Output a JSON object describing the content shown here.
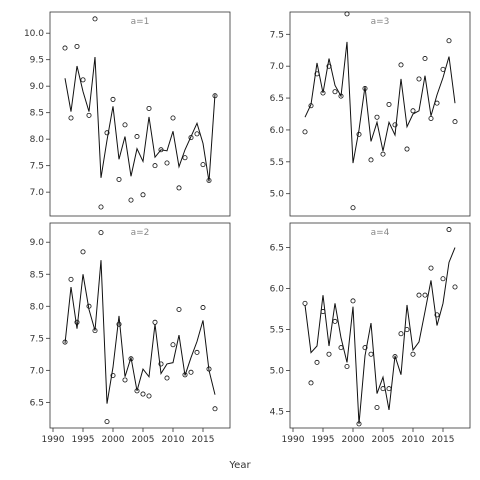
{
  "chart_data": {
    "type": "scatter",
    "xlabel": "Year",
    "panels": [
      {
        "title": "a=1",
        "xlim": [
          1989.5,
          2019.5
        ],
        "ylim": [
          6.55,
          10.4
        ],
        "yticks": [
          7.0,
          7.5,
          8.0,
          8.5,
          9.0,
          9.5,
          10.0
        ],
        "ytick_labels": [
          "7.0",
          "7.5",
          "8.0",
          "8.5",
          "9.0",
          "9.5",
          "10.0"
        ],
        "xticks": [],
        "xtick_labels": [],
        "x": [
          1992,
          1993,
          1994,
          1995,
          1996,
          1997,
          1998,
          1999,
          2000,
          2001,
          2002,
          2003,
          2004,
          2005,
          2006,
          2007,
          2008,
          2009,
          2010,
          2011,
          2012,
          2013,
          2014,
          2015,
          2016,
          2017
        ],
        "observed": [
          9.72,
          8.4,
          9.75,
          9.12,
          8.45,
          10.27,
          6.72,
          8.12,
          8.75,
          7.24,
          8.27,
          6.85,
          8.05,
          6.95,
          8.58,
          7.5,
          7.8,
          7.55,
          8.4,
          7.08,
          7.65,
          8.03,
          8.1,
          7.52,
          7.22,
          8.82
        ],
        "fitted": [
          9.15,
          8.52,
          9.38,
          8.9,
          8.52,
          9.55,
          7.27,
          7.98,
          8.62,
          7.62,
          8.05,
          7.3,
          7.82,
          7.58,
          8.42,
          7.66,
          7.8,
          7.78,
          8.15,
          7.48,
          7.8,
          8.05,
          8.3,
          7.92,
          7.2,
          8.85
        ]
      },
      {
        "title": "a=3",
        "xlim": [
          1989.5,
          2019.5
        ],
        "ylim": [
          4.65,
          7.85
        ],
        "yticks": [
          5.0,
          5.5,
          6.0,
          6.5,
          7.0,
          7.5
        ],
        "ytick_labels": [
          "5.0",
          "5.5",
          "6.0",
          "6.5",
          "7.0",
          "7.5"
        ],
        "xticks": [],
        "xtick_labels": [],
        "x": [
          1992,
          1993,
          1994,
          1995,
          1996,
          1997,
          1998,
          1999,
          2000,
          2001,
          2002,
          2003,
          2004,
          2005,
          2006,
          2007,
          2008,
          2009,
          2010,
          2011,
          2012,
          2013,
          2014,
          2015,
          2016,
          2017
        ],
        "observed": [
          5.97,
          6.38,
          6.88,
          6.58,
          7.0,
          6.6,
          6.53,
          7.82,
          4.78,
          5.93,
          6.65,
          5.53,
          6.2,
          5.62,
          6.4,
          6.08,
          7.02,
          5.7,
          6.3,
          6.8,
          7.12,
          6.18,
          6.42,
          6.95,
          7.4,
          6.13
        ],
        "fitted": [
          6.2,
          6.4,
          7.05,
          6.58,
          7.12,
          6.7,
          6.53,
          7.38,
          5.48,
          6.0,
          6.68,
          5.82,
          6.12,
          5.67,
          6.12,
          5.92,
          6.8,
          6.05,
          6.25,
          6.3,
          6.85,
          6.22,
          6.55,
          6.82,
          7.15,
          6.42
        ]
      },
      {
        "title": "a=2",
        "xlim": [
          1989.5,
          2019.5
        ],
        "ylim": [
          6.1,
          9.3
        ],
        "yticks": [
          6.5,
          7.0,
          7.5,
          8.0,
          8.5,
          9.0
        ],
        "ytick_labels": [
          "6.5",
          "7.0",
          "7.5",
          "8.0",
          "8.5",
          "9.0"
        ],
        "xticks": [
          1990,
          1995,
          2000,
          2005,
          2010,
          2015
        ],
        "xtick_labels": [
          "1990",
          "1995",
          "2000",
          "2005",
          "2010",
          "2015"
        ],
        "x": [
          1992,
          1993,
          1994,
          1995,
          1996,
          1997,
          1998,
          1999,
          2000,
          2001,
          2002,
          2003,
          2004,
          2005,
          2006,
          2007,
          2008,
          2009,
          2010,
          2011,
          2012,
          2013,
          2014,
          2015,
          2016,
          2017
        ],
        "observed": [
          7.44,
          8.42,
          7.75,
          8.85,
          8.0,
          7.62,
          9.15,
          6.2,
          6.92,
          7.72,
          6.85,
          7.18,
          6.68,
          6.63,
          6.6,
          7.75,
          7.1,
          6.88,
          7.4,
          7.95,
          6.93,
          6.97,
          7.28,
          7.98,
          7.02,
          6.4
        ],
        "fitted": [
          7.42,
          8.3,
          7.65,
          8.5,
          7.95,
          7.62,
          8.72,
          6.48,
          7.05,
          7.85,
          6.9,
          7.2,
          6.68,
          7.02,
          6.9,
          7.72,
          6.95,
          7.1,
          7.12,
          7.55,
          6.92,
          7.2,
          7.45,
          7.78,
          7.0,
          6.62
        ]
      },
      {
        "title": "a=4",
        "xlim": [
          1989.5,
          2019.5
        ],
        "ylim": [
          4.3,
          6.8
        ],
        "yticks": [
          4.5,
          5.0,
          5.5,
          6.0,
          6.5
        ],
        "ytick_labels": [
          "4.5",
          "5.0",
          "5.5",
          "6.0",
          "6.5"
        ],
        "xticks": [
          1990,
          1995,
          2000,
          2005,
          2010,
          2015
        ],
        "xtick_labels": [
          "1990",
          "1995",
          "2000",
          "2005",
          "2010",
          "2015"
        ],
        "x": [
          1992,
          1993,
          1994,
          1995,
          1996,
          1997,
          1998,
          1999,
          2000,
          2001,
          2002,
          2003,
          2004,
          2005,
          2006,
          2007,
          2008,
          2009,
          2010,
          2011,
          2012,
          2013,
          2014,
          2015,
          2016,
          2017
        ],
        "observed": [
          5.82,
          4.85,
          5.1,
          5.72,
          5.2,
          5.6,
          5.28,
          5.05,
          5.85,
          4.35,
          5.28,
          5.2,
          4.55,
          4.78,
          4.78,
          5.17,
          5.45,
          5.5,
          5.2,
          5.92,
          5.92,
          6.25,
          5.68,
          6.12,
          6.72,
          6.02
        ],
        "fitted": [
          5.8,
          5.22,
          5.3,
          5.92,
          5.3,
          5.82,
          5.4,
          5.1,
          5.78,
          4.35,
          5.18,
          5.58,
          4.72,
          4.92,
          4.52,
          5.18,
          4.95,
          5.8,
          5.25,
          5.35,
          5.72,
          6.1,
          5.55,
          5.82,
          6.32,
          6.5
        ]
      }
    ]
  }
}
